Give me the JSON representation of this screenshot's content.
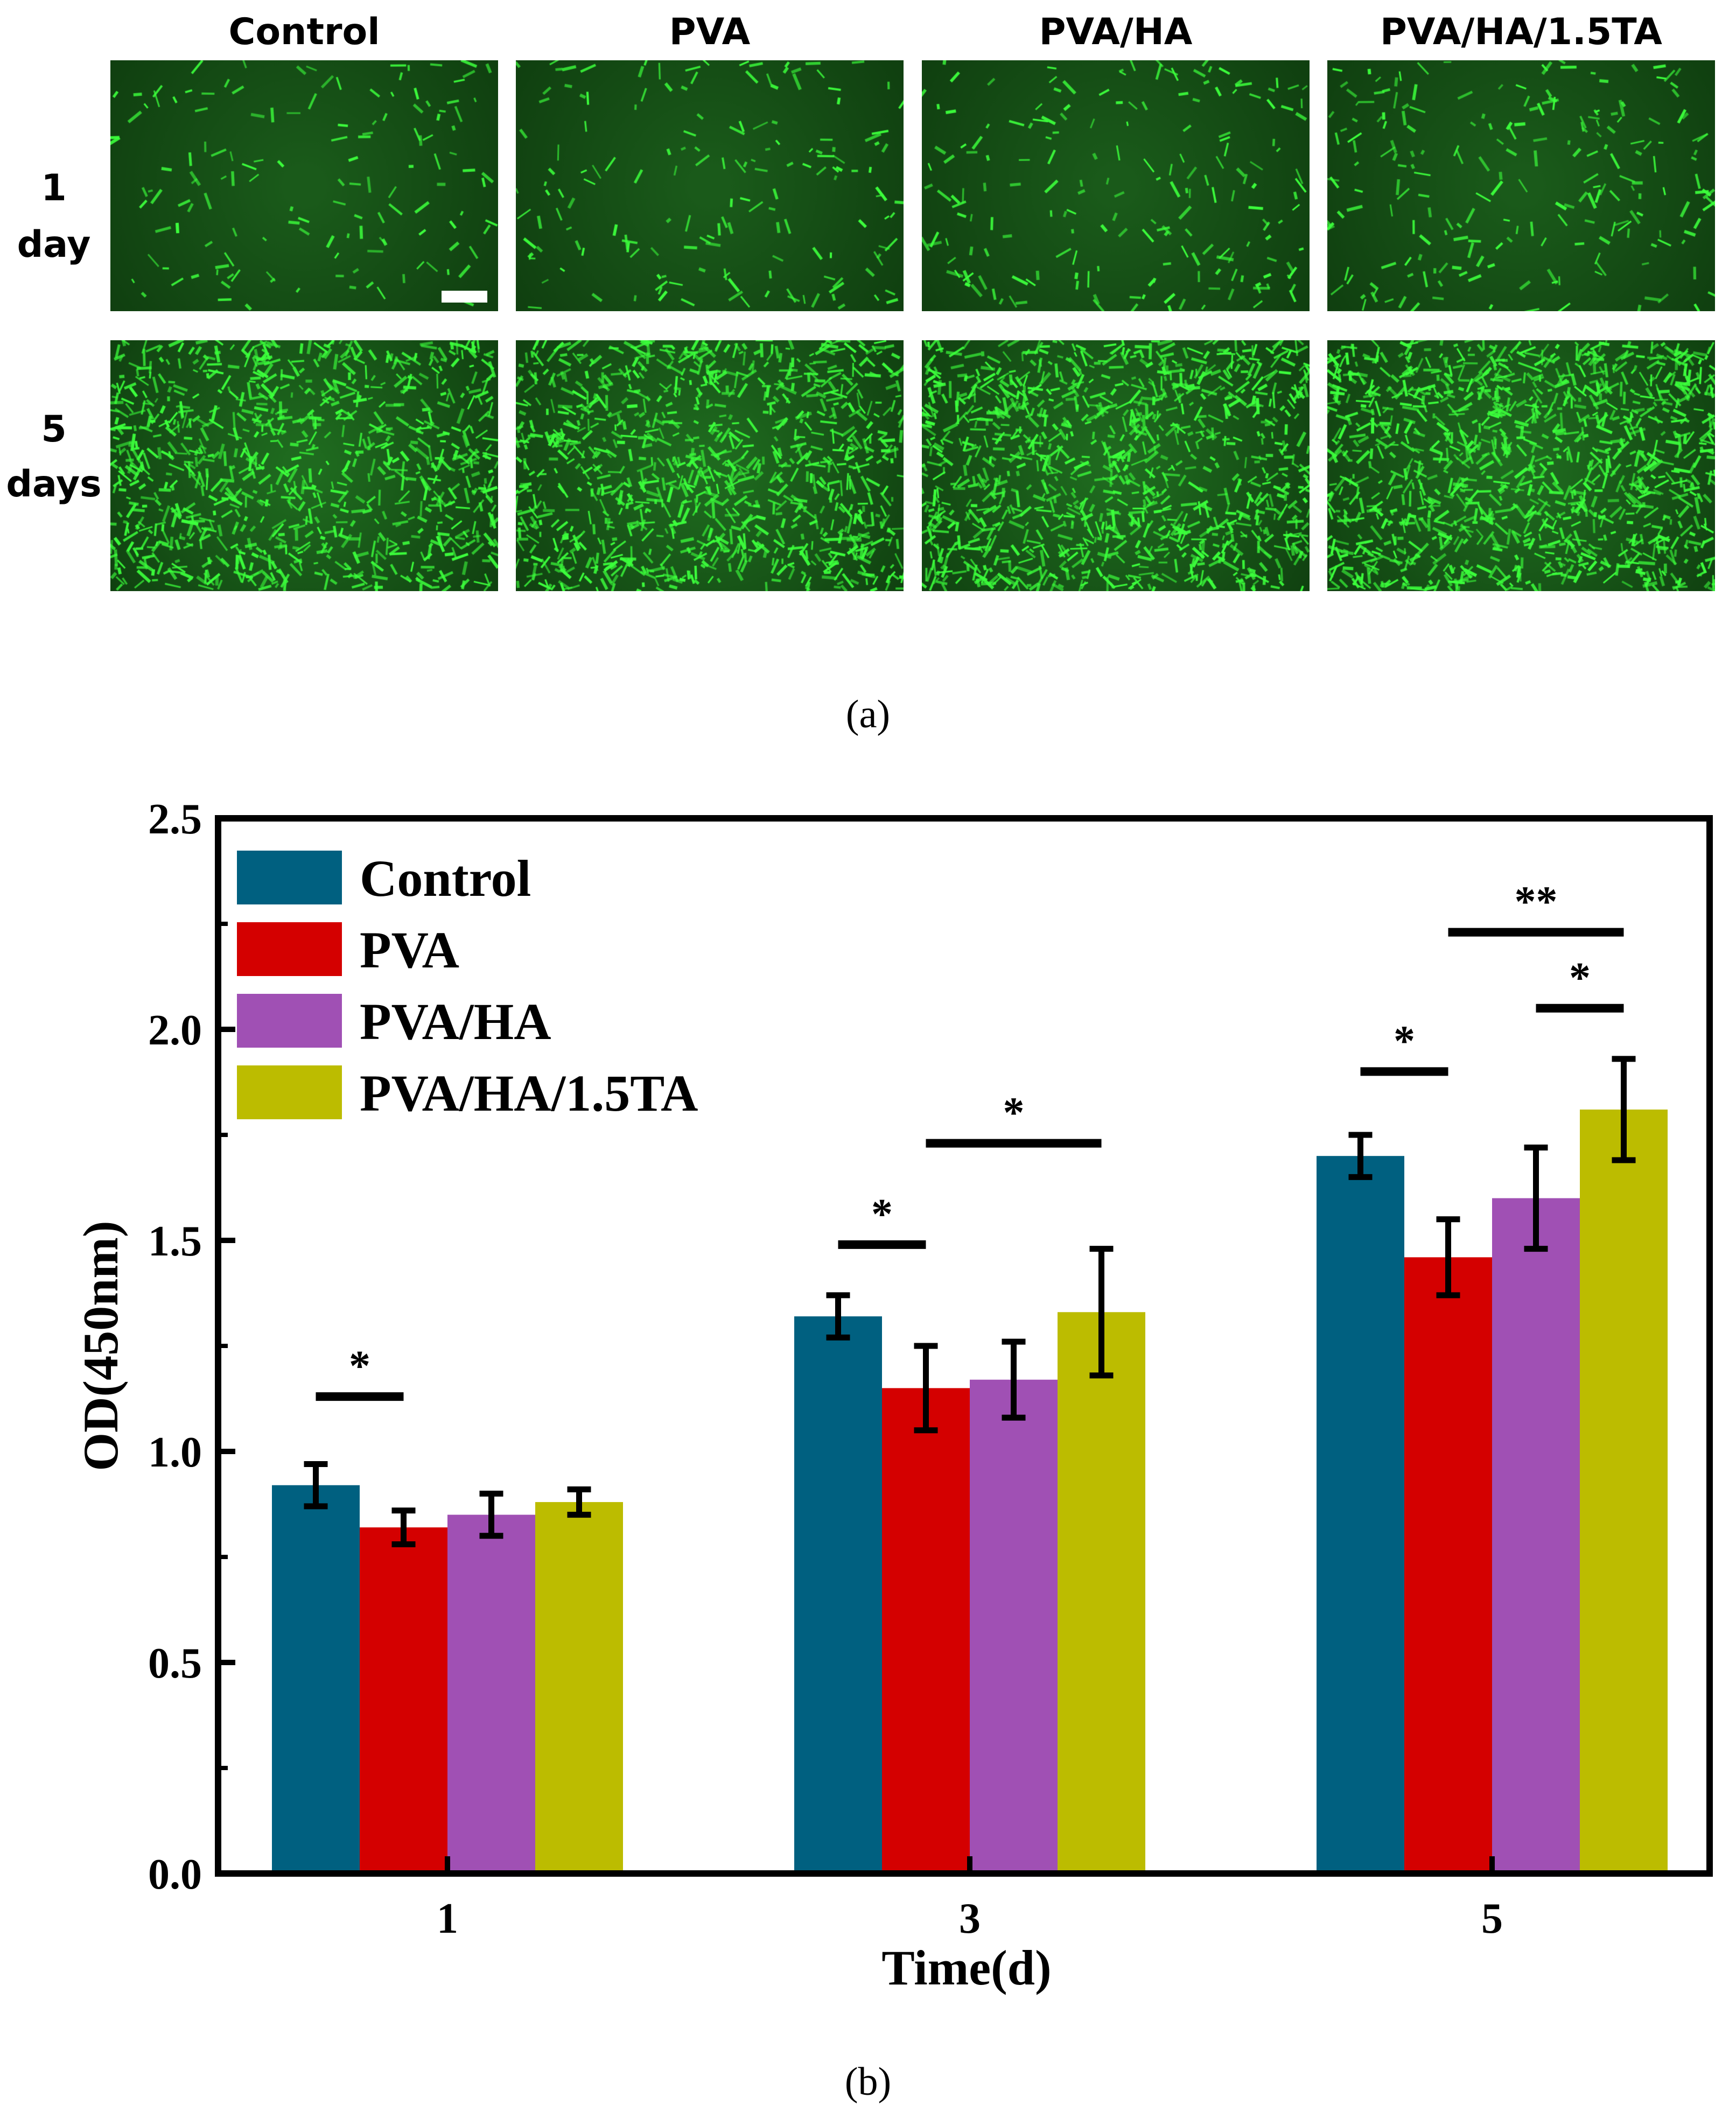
{
  "panel_a": {
    "columns": [
      "Control",
      "PVA",
      "PVA/HA",
      "PVA/HA/1.5TA"
    ],
    "rows": [
      {
        "line1": "1",
        "line2": "day"
      },
      {
        "line1": "5",
        "line2": "days"
      }
    ],
    "caption": "(a)",
    "image_tint": "#0f3d0f",
    "cell_color": "#3cff3c"
  },
  "panel_b": {
    "caption": "(b)"
  },
  "chart_data": {
    "type": "bar",
    "categories": [
      "1",
      "3",
      "5"
    ],
    "xlabel": "Time(d)",
    "ylabel": "OD(450nm)",
    "ylim": [
      0,
      2.5
    ],
    "yticks": [
      "0.0",
      "0.5",
      "1.0",
      "1.5",
      "2.0",
      "2.5"
    ],
    "legend_position": "top-left",
    "series": [
      {
        "name": "Control",
        "color": "#006080",
        "values": [
          0.92,
          1.32,
          1.7
        ],
        "errors": [
          0.05,
          0.05,
          0.05
        ]
      },
      {
        "name": "PVA",
        "color": "#d40000",
        "values": [
          0.82,
          1.15,
          1.46
        ],
        "errors": [
          0.04,
          0.1,
          0.09
        ]
      },
      {
        "name": "PVA/HA",
        "color": "#a050b4",
        "values": [
          0.85,
          1.17,
          1.6
        ],
        "errors": [
          0.05,
          0.09,
          0.12
        ]
      },
      {
        "name": "PVA/HA/1.5TA",
        "color": "#bcbc00",
        "values": [
          0.88,
          1.33,
          1.81
        ],
        "errors": [
          0.03,
          0.15,
          0.12
        ]
      }
    ],
    "significance": [
      {
        "category": 0,
        "from": 0,
        "to": 1,
        "y": 1.13,
        "label": "*"
      },
      {
        "category": 1,
        "from": 0,
        "to": 1,
        "y": 1.49,
        "label": "*"
      },
      {
        "category": 1,
        "from": 1,
        "to": 3,
        "y": 1.73,
        "label": "*"
      },
      {
        "category": 2,
        "from": 0,
        "to": 1,
        "y": 1.9,
        "label": "*"
      },
      {
        "category": 2,
        "from": 2,
        "to": 3,
        "y": 2.05,
        "label": "*"
      },
      {
        "category": 2,
        "from": 1,
        "to": 3,
        "y": 2.23,
        "label": "**"
      }
    ]
  }
}
